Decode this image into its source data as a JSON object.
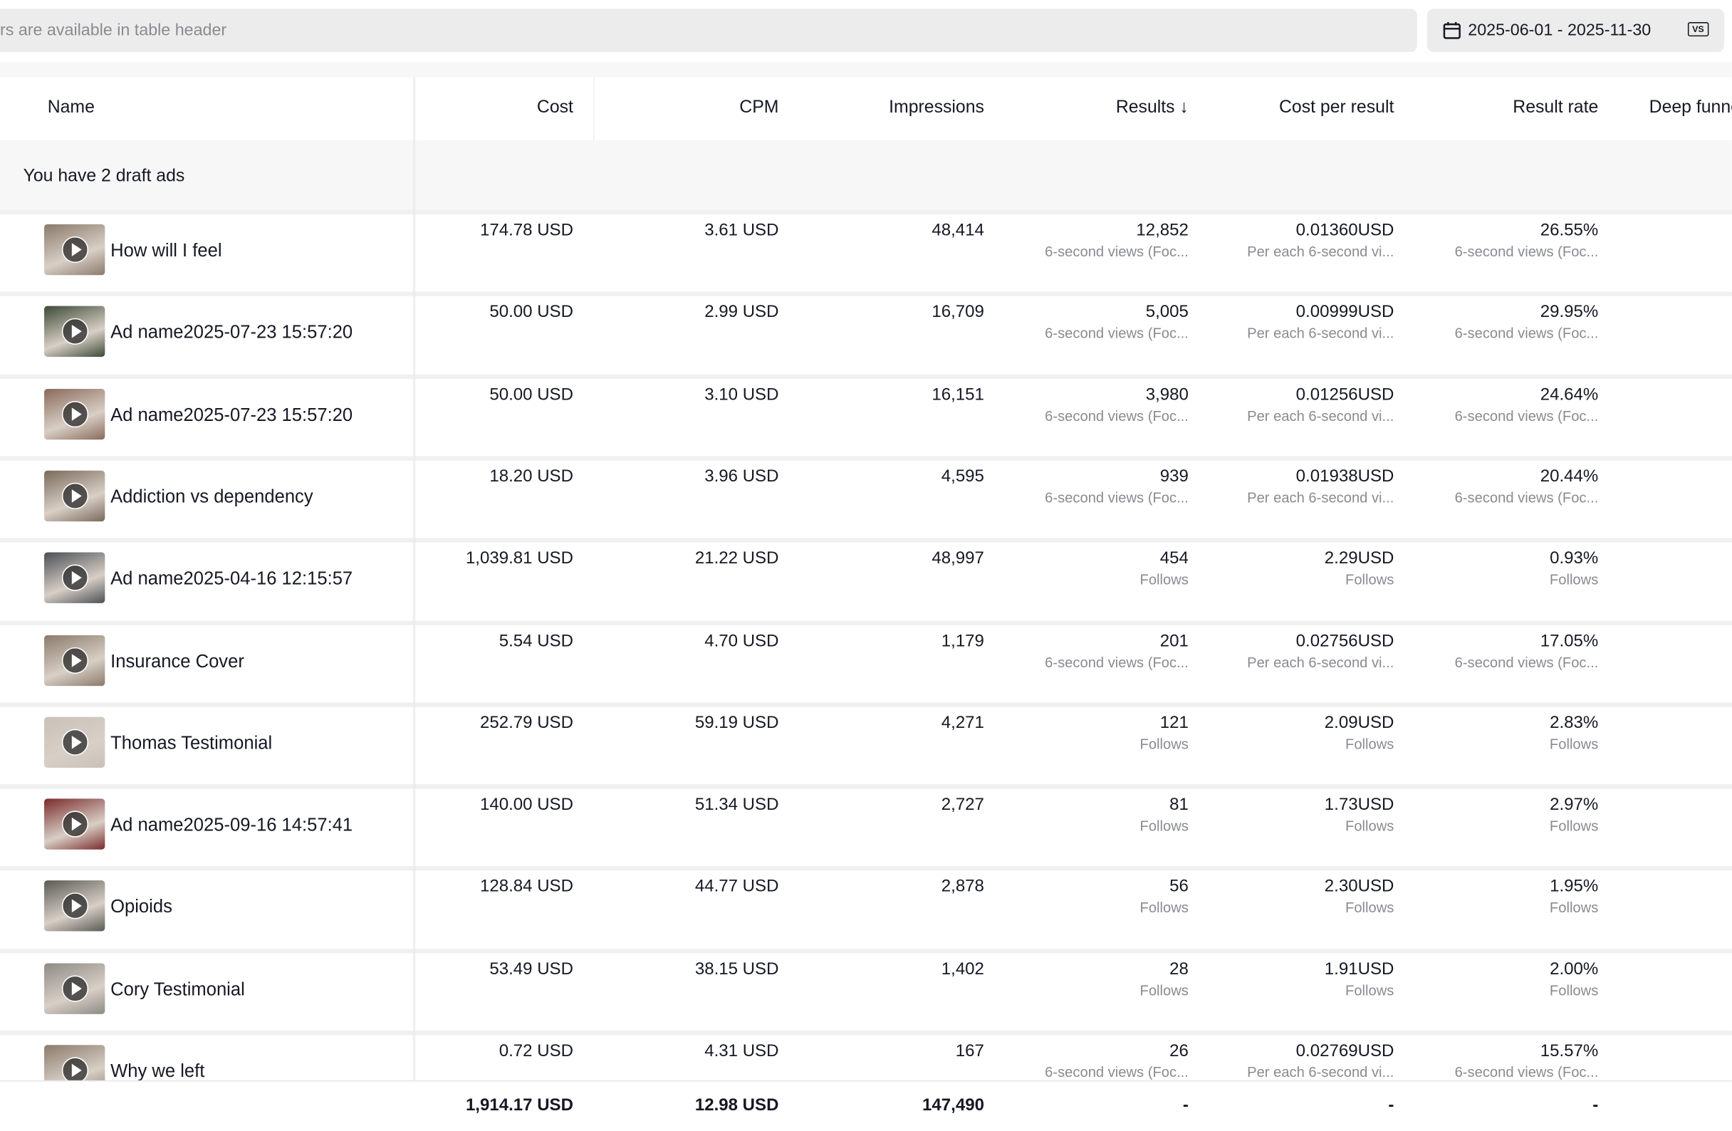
{
  "toolbar": {
    "search_placeholder": "rs are available in table header",
    "date_range": "2025-06-01 - 2025-11-30",
    "compare_label": "VS"
  },
  "table": {
    "columns": [
      "Name",
      "Cost",
      "CPM",
      "Impressions",
      "Results ↓",
      "Cost per result",
      "Result rate",
      "Deep funnel"
    ],
    "draft_banner": "You have 2 draft ads",
    "rows": [
      {
        "name": "How will I feel",
        "cost": "174.78 USD",
        "cpm": "3.61 USD",
        "impressions": "48,414",
        "results": "12,852",
        "results_sub": "6-second views (Foc...",
        "cpr": "0.01360USD",
        "cpr_sub": "Per each 6-second vi...",
        "rate": "26.55%",
        "rate_sub": "6-second views (Foc..."
      },
      {
        "name": "Ad name2025-07-23 15:57:20",
        "cost": "50.00 USD",
        "cpm": "2.99 USD",
        "impressions": "16,709",
        "results": "5,005",
        "results_sub": "6-second views (Foc...",
        "cpr": "0.00999USD",
        "cpr_sub": "Per each 6-second vi...",
        "rate": "29.95%",
        "rate_sub": "6-second views (Foc..."
      },
      {
        "name": "Ad name2025-07-23 15:57:20",
        "cost": "50.00 USD",
        "cpm": "3.10 USD",
        "impressions": "16,151",
        "results": "3,980",
        "results_sub": "6-second views (Foc...",
        "cpr": "0.01256USD",
        "cpr_sub": "Per each 6-second vi...",
        "rate": "24.64%",
        "rate_sub": "6-second views (Foc..."
      },
      {
        "name": "Addiction vs dependency",
        "cost": "18.20 USD",
        "cpm": "3.96 USD",
        "impressions": "4,595",
        "results": "939",
        "results_sub": "6-second views (Foc...",
        "cpr": "0.01938USD",
        "cpr_sub": "Per each 6-second vi...",
        "rate": "20.44%",
        "rate_sub": "6-second views (Foc..."
      },
      {
        "name": "Ad name2025-04-16 12:15:57",
        "cost": "1,039.81 USD",
        "cpm": "21.22 USD",
        "impressions": "48,997",
        "results": "454",
        "results_sub": "Follows",
        "cpr": "2.29USD",
        "cpr_sub": "Follows",
        "rate": "0.93%",
        "rate_sub": "Follows"
      },
      {
        "name": "Insurance Cover",
        "cost": "5.54 USD",
        "cpm": "4.70 USD",
        "impressions": "1,179",
        "results": "201",
        "results_sub": "6-second views (Foc...",
        "cpr": "0.02756USD",
        "cpr_sub": "Per each 6-second vi...",
        "rate": "17.05%",
        "rate_sub": "6-second views (Foc..."
      },
      {
        "name": "Thomas Testimonial",
        "cost": "252.79 USD",
        "cpm": "59.19 USD",
        "impressions": "4,271",
        "results": "121",
        "results_sub": "Follows",
        "cpr": "2.09USD",
        "cpr_sub": "Follows",
        "rate": "2.83%",
        "rate_sub": "Follows"
      },
      {
        "name": "Ad name2025-09-16 14:57:41",
        "cost": "140.00 USD",
        "cpm": "51.34 USD",
        "impressions": "2,727",
        "results": "81",
        "results_sub": "Follows",
        "cpr": "1.73USD",
        "cpr_sub": "Follows",
        "rate": "2.97%",
        "rate_sub": "Follows"
      },
      {
        "name": "Opioids",
        "cost": "128.84 USD",
        "cpm": "44.77 USD",
        "impressions": "2,878",
        "results": "56",
        "results_sub": "Follows",
        "cpr": "2.30USD",
        "cpr_sub": "Follows",
        "rate": "1.95%",
        "rate_sub": "Follows"
      },
      {
        "name": "Cory Testimonial",
        "cost": "53.49 USD",
        "cpm": "38.15 USD",
        "impressions": "1,402",
        "results": "28",
        "results_sub": "Follows",
        "cpr": "1.91USD",
        "cpr_sub": "Follows",
        "rate": "2.00%",
        "rate_sub": "Follows"
      },
      {
        "name": "Why we left",
        "cost": "0.72 USD",
        "cpm": "4.31 USD",
        "impressions": "167",
        "results": "26",
        "results_sub": "6-second views (Foc...",
        "cpr": "0.02769USD",
        "cpr_sub": "Per each 6-second vi...",
        "rate": "15.57%",
        "rate_sub": "6-second views (Foc..."
      }
    ],
    "totals": {
      "cost": "1,914.17 USD",
      "cpm": "12.98 USD",
      "impressions": "147,490",
      "results": "-",
      "cpr": "-",
      "rate": "-"
    }
  }
}
